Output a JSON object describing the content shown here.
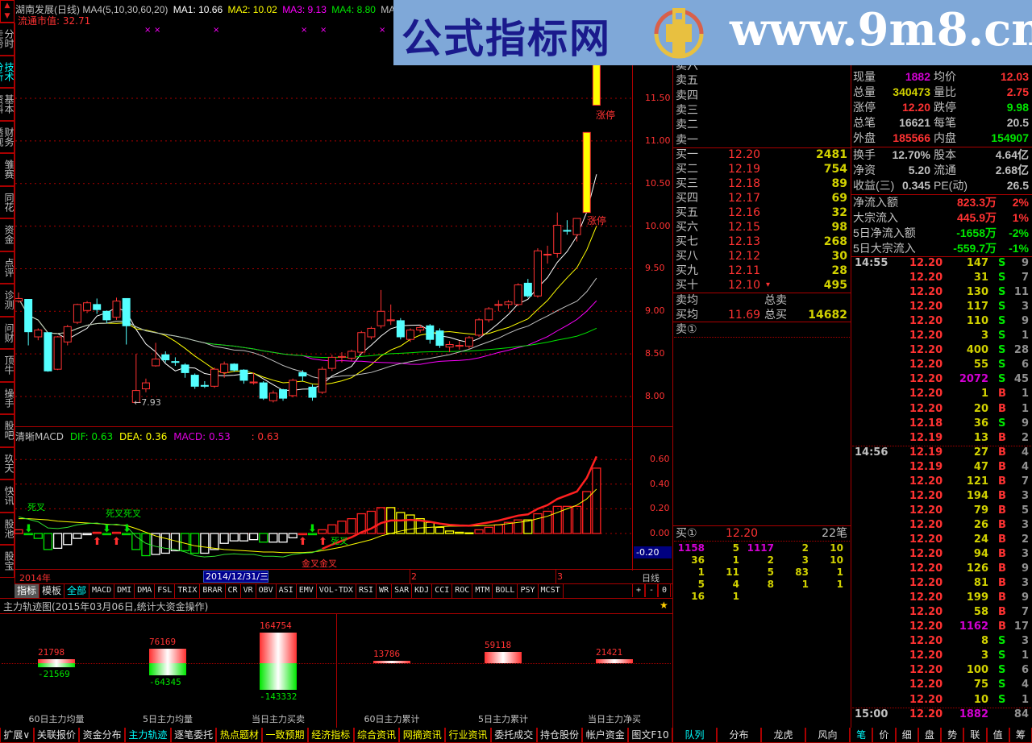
{
  "header": {
    "title": "湖南发展(日线) MA4(5,10,30,60,20)",
    "ma1": "MA1: 10.66",
    "ma2": "MA2: 10.02",
    "ma3": "MA3: 9.13",
    "ma4": "MA4: 8.80",
    "ma5": "MA5",
    "market_cap": "流通市值: 32.71"
  },
  "banner": {
    "site_name": "公式指标网",
    "url": "www.9m8.cn"
  },
  "sidebar": {
    "tabs": [
      "分时走势",
      "技术分析",
      "基本资料",
      "财务透视",
      "雏赛",
      "同花",
      "资金",
      "点评",
      "诊测",
      "问财",
      "顶牛",
      "操手",
      "股吧",
      "玖天",
      "快讯",
      "股池",
      "股宝"
    ],
    "active": 1
  },
  "main_chart": {
    "price_ticks": [
      "8.00",
      "8.50",
      "9.00",
      "9.50",
      "10.00",
      "10.50",
      "11.00",
      "11.50"
    ],
    "low_marker": "←7.93",
    "limit_up_label": "涨停",
    "colors": {
      "up": "#ff3232",
      "down": "#54ffff",
      "limit": "#ffff00",
      "ma1": "#ffffff",
      "ma2": "#ffff00",
      "ma3": "#ff00ff",
      "ma4": "#00e600",
      "ma5": "#c0c0c0"
    }
  },
  "chart_data": [
    {
      "type": "candlestick",
      "title": "湖南发展(日线)",
      "ylim": [
        7.8,
        11.9
      ],
      "yticks": [
        8.0,
        8.5,
        9.0,
        9.5,
        10.0,
        10.5,
        11.0,
        11.5
      ],
      "columns": [
        "open",
        "close",
        "high",
        "low"
      ],
      "candles": [
        [
          9.12,
          9.15,
          9.22,
          9.1
        ],
        [
          9.14,
          8.76,
          9.14,
          8.6
        ],
        [
          8.7,
          8.78,
          8.8,
          8.66
        ],
        [
          8.75,
          8.3,
          8.75,
          8.29
        ],
        [
          8.32,
          8.7,
          8.71,
          8.31
        ],
        [
          8.64,
          8.82,
          8.84,
          8.6
        ],
        [
          8.87,
          9.08,
          9.09,
          8.85
        ],
        [
          9.01,
          9.1,
          9.12,
          8.98
        ],
        [
          9.08,
          9.02,
          9.15,
          8.97
        ],
        [
          9.0,
          8.9,
          9.01,
          8.86
        ],
        [
          8.93,
          9.12,
          9.16,
          8.9
        ],
        [
          9.15,
          8.83,
          9.15,
          8.61
        ],
        [
          7.93,
          8.07,
          8.5,
          7.93
        ],
        [
          8.09,
          8.16,
          8.21,
          8.05
        ],
        [
          8.36,
          8.44,
          8.63,
          8.35
        ],
        [
          8.49,
          8.43,
          8.53,
          8.4
        ],
        [
          8.41,
          8.4,
          8.46,
          8.36
        ],
        [
          8.37,
          8.28,
          8.39,
          8.22
        ],
        [
          8.25,
          8.12,
          8.27,
          8.09
        ],
        [
          8.13,
          8.12,
          8.18,
          8.1
        ],
        [
          8.12,
          8.32,
          8.34,
          8.1
        ],
        [
          8.28,
          8.38,
          8.41,
          8.22
        ],
        [
          8.38,
          8.31,
          8.39,
          8.29
        ],
        [
          8.31,
          8.19,
          8.32,
          8.15
        ],
        [
          8.16,
          8.17,
          8.28,
          8.14
        ],
        [
          8.16,
          7.98,
          8.18,
          7.96
        ],
        [
          7.95,
          8.04,
          8.07,
          7.93
        ],
        [
          8.08,
          7.98,
          8.09,
          7.95
        ],
        [
          8.01,
          8.19,
          8.21,
          7.99
        ],
        [
          8.28,
          8.24,
          8.31,
          8.18
        ],
        [
          8.11,
          7.99,
          8.14,
          7.95
        ],
        [
          8.05,
          8.32,
          8.35,
          8.03
        ],
        [
          8.33,
          8.46,
          8.49,
          8.3
        ],
        [
          8.46,
          8.47,
          8.52,
          8.4
        ],
        [
          8.45,
          8.53,
          8.55,
          8.42
        ],
        [
          8.52,
          8.75,
          8.77,
          8.5
        ],
        [
          8.7,
          8.8,
          8.82,
          8.67
        ],
        [
          8.83,
          9.0,
          9.25,
          8.8
        ],
        [
          8.89,
          8.9,
          9.08,
          8.84
        ],
        [
          8.89,
          8.7,
          8.92,
          8.67
        ],
        [
          8.67,
          8.78,
          8.8,
          8.64
        ],
        [
          8.78,
          8.81,
          8.84,
          8.75
        ],
        [
          8.83,
          8.67,
          8.85,
          8.62
        ],
        [
          8.77,
          8.6,
          8.8,
          8.57
        ],
        [
          8.58,
          8.61,
          8.65,
          8.52
        ],
        [
          8.59,
          8.6,
          8.65,
          8.55
        ],
        [
          8.59,
          8.69,
          8.71,
          8.56
        ],
        [
          8.72,
          8.9,
          8.92,
          8.7
        ],
        [
          8.9,
          9.03,
          9.05,
          8.87
        ],
        [
          9.07,
          9.08,
          9.13,
          9.0
        ],
        [
          9.08,
          9.11,
          9.13,
          9.03
        ],
        [
          9.08,
          9.31,
          9.33,
          9.06
        ],
        [
          9.33,
          9.18,
          9.38,
          9.16
        ],
        [
          9.18,
          9.71,
          9.74,
          9.16
        ],
        [
          9.66,
          9.67,
          9.77,
          9.56
        ],
        [
          9.68,
          10.01,
          10.16,
          9.63
        ],
        [
          9.95,
          9.94,
          10.07,
          9.9
        ],
        [
          9.9,
          10.09,
          10.09,
          9.82
        ],
        [
          10.16,
          11.1,
          11.1,
          10.16
        ],
        [
          11.42,
          11.9,
          11.9,
          11.42
        ]
      ],
      "limit_up_days": [
        58,
        59
      ],
      "moving_averages": {
        "MA1": 5,
        "MA2": 10,
        "MA3": 30,
        "MA4": 60,
        "MA5": 20
      }
    },
    {
      "type": "bar",
      "title": "清晰MACD",
      "ylim": [
        -0.25,
        0.75
      ],
      "yticks": [
        0.0,
        0.2,
        0.4,
        0.6
      ],
      "series": [
        {
          "name": "MACD",
          "values": [
            0.03,
            -0.01,
            -0.04,
            -0.13,
            -0.12,
            -0.09,
            -0.04,
            -0.01,
            0.01,
            -0.01,
            0.01,
            -0.01,
            -0.13,
            -0.18,
            -0.17,
            -0.16,
            -0.14,
            -0.14,
            -0.16,
            -0.16,
            -0.13,
            -0.08,
            -0.06,
            -0.06,
            -0.05,
            -0.07,
            -0.07,
            -0.07,
            -0.035,
            -0.01,
            -0.01,
            0.03,
            0.07,
            0.1,
            0.12,
            0.16,
            0.18,
            0.21,
            0.21,
            0.17,
            0.15,
            0.12,
            0.09,
            0.05,
            0.02,
            0.01,
            0.005,
            0.03,
            0.05,
            0.07,
            0.09,
            0.11,
            0.11,
            0.16,
            0.18,
            0.22,
            0.22,
            0.22,
            0.34,
            0.53
          ]
        },
        {
          "name": "DIF",
          "values": [
            0.135,
            0.115,
            0.095,
            0.045,
            0.04,
            0.05,
            0.07,
            0.08,
            0.085,
            0.07,
            0.075,
            0.06,
            -0.025,
            -0.08,
            -0.105,
            -0.12,
            -0.13,
            -0.15,
            -0.18,
            -0.19,
            -0.185,
            -0.17,
            -0.165,
            -0.17,
            -0.17,
            -0.185,
            -0.185,
            -0.19,
            -0.17,
            -0.16,
            -0.155,
            -0.125,
            -0.09,
            -0.06,
            -0.03,
            0.01,
            0.04,
            0.085,
            0.105,
            0.105,
            0.11,
            0.105,
            0.095,
            0.08,
            0.07,
            0.065,
            0.063,
            0.077,
            0.09,
            0.105,
            0.125,
            0.145,
            0.155,
            0.2,
            0.23,
            0.28,
            0.31,
            0.34,
            0.45,
            0.625
          ]
        },
        {
          "name": "DEA",
          "values": [
            0.12,
            0.12,
            0.115,
            0.11,
            0.1,
            0.095,
            0.09,
            0.085,
            0.08,
            0.075,
            0.07,
            0.065,
            0.04,
            0.01,
            -0.02,
            -0.04,
            -0.06,
            -0.08,
            -0.1,
            -0.11,
            -0.12,
            -0.13,
            -0.135,
            -0.14,
            -0.145,
            -0.15,
            -0.15,
            -0.155,
            -0.155,
            -0.155,
            -0.15,
            -0.14,
            -0.125,
            -0.11,
            -0.09,
            -0.07,
            -0.05,
            -0.02,
            0.0,
            0.02,
            0.035,
            0.045,
            0.05,
            0.055,
            0.06,
            0.06,
            0.06,
            0.062,
            0.065,
            0.07,
            0.08,
            0.09,
            0.1,
            0.12,
            0.14,
            0.17,
            0.2,
            0.23,
            0.28,
            0.36
          ]
        }
      ],
      "bar_styles": "rgggwwwwrgrgggwwwggwwwwwwgwwwrgrrrrrrryyyyyyyyyrrrrryrrrrrrr",
      "style_colors": {
        "r": "#ff2020",
        "g": "#00e600",
        "w": "#ffffff",
        "y": "#ffff00"
      }
    },
    {
      "type": "bar",
      "title": "主力轨迹图(2015年03月06日,统计大资金操作)",
      "categories": [
        "60日主力均量",
        "5日主力均量",
        "当日主力买卖",
        "60日主力累计",
        "5日主力累计",
        "当日主力净买"
      ],
      "series": [
        {
          "name": "buy",
          "values": [
            21798,
            76169,
            164754,
            13786,
            59118,
            21421
          ]
        },
        {
          "name": "sell",
          "values": [
            -21569,
            -64345,
            -143332,
            null,
            null,
            null
          ]
        }
      ]
    }
  ],
  "macd": {
    "label": "清晰MACD",
    "dif": "DIF: 0.63",
    "dea": "DEA: 0.36",
    "macd": "MACD: 0.53",
    "extra": ": 0.63",
    "ticks": [
      "0.00",
      "0.20",
      "0.40",
      "0.60"
    ],
    "cursor_value": "-0.20",
    "signals": {
      "dead_cross": "死叉",
      "dead_cross_2": "死叉死叉",
      "golden_cross_2": "金叉金叉",
      "dead_cross_3": "死叉"
    }
  },
  "date_axis": {
    "year": "2014年",
    "cursor_date": "2014/12/31/三",
    "m2": "2",
    "m3": "3",
    "period": "日线"
  },
  "indicator_tabs": {
    "items": [
      "指标",
      "模板",
      "全部",
      "MACD",
      "DMI",
      "DMA",
      "FSL",
      "TRIX",
      "BRAR",
      "CR",
      "VR",
      "OBV",
      "ASI",
      "EMV",
      "VOL-TDX",
      "RSI",
      "WR",
      "SAR",
      "KDJ",
      "CCI",
      "ROC",
      "MTM",
      "BOLL",
      "PSY",
      "MCST"
    ],
    "zoom": [
      "+",
      "-",
      "0"
    ]
  },
  "fund_flow": {
    "title": "主力轨迹图(2015年03月06日,统计大资金操作)",
    "items": [
      {
        "label": "60日主力均量",
        "buy": "21798",
        "sell": "-21569"
      },
      {
        "label": "5日主力均量",
        "buy": "76169",
        "sell": "-64345"
      },
      {
        "label": "当日主力买卖",
        "buy": "164754",
        "sell": "-143332"
      },
      {
        "label": "60日主力累计",
        "buy": "13786"
      },
      {
        "label": "5日主力累计",
        "buy": "59118"
      },
      {
        "label": "当日主力净买",
        "buy": "21421"
      }
    ]
  },
  "order_book": {
    "sell": [
      {
        "label": "卖六"
      },
      {
        "label": "卖五"
      },
      {
        "label": "卖四"
      },
      {
        "label": "卖三"
      },
      {
        "label": "卖二"
      },
      {
        "label": "卖一"
      }
    ],
    "buy": [
      {
        "label": "买一",
        "price": "12.20",
        "vol": "2481"
      },
      {
        "label": "买二",
        "price": "12.19",
        "vol": "754"
      },
      {
        "label": "买三",
        "price": "12.18",
        "vol": "89"
      },
      {
        "label": "买四",
        "price": "12.17",
        "vol": "69"
      },
      {
        "label": "买五",
        "price": "12.16",
        "vol": "32"
      },
      {
        "label": "买六",
        "price": "12.15",
        "vol": "98"
      },
      {
        "label": "买七",
        "price": "12.13",
        "vol": "268"
      },
      {
        "label": "买八",
        "price": "12.12",
        "vol": "30"
      },
      {
        "label": "买九",
        "price": "12.11",
        "vol": "28"
      },
      {
        "label": "买十",
        "price": "12.10",
        "vol": "495",
        "mark": "▾"
      }
    ],
    "sell_avg_label": "卖均",
    "total_sell_label": "总卖",
    "buy_avg_label": "买均",
    "buy_avg": "11.69",
    "total_buy_label": "总买",
    "total_buy": "14682",
    "sell1_queue_label": "卖①",
    "buy1_queue_label": "买①",
    "buy1_price": "12.20",
    "buy1_count": "22笔",
    "queue": [
      [
        "1158",
        "5",
        "1117",
        "2",
        "10"
      ],
      [
        "36",
        "1",
        "2",
        "3",
        "10"
      ],
      [
        "1",
        "11",
        "5",
        "83",
        "1"
      ],
      [
        "5",
        "4",
        "8",
        "1",
        "1"
      ],
      [
        "16",
        "1",
        "",
        "",
        ""
      ]
    ]
  },
  "stats": {
    "quote": [
      [
        "现量",
        "1882",
        "mag",
        "均价",
        "12.03",
        "red"
      ],
      [
        "总量",
        "340473",
        "yel",
        "量比",
        "2.75",
        "red"
      ],
      [
        "涨停",
        "12.20",
        "red",
        "跌停",
        "9.98",
        "grn"
      ],
      [
        "总笔",
        "16621",
        "gry",
        "每笔",
        "20.5",
        "gry"
      ],
      [
        "外盘",
        "185566",
        "red",
        "内盘",
        "154907",
        "grn"
      ]
    ],
    "fundamental": [
      [
        "换手",
        "12.70%",
        "股本",
        "4.64亿"
      ],
      [
        "净资",
        "5.20",
        "流通",
        "2.68亿"
      ],
      [
        "收益(三)",
        "0.345",
        "PE(动)",
        "26.5"
      ]
    ],
    "flow": [
      [
        "净流入额",
        "823.3万",
        "2%",
        "red"
      ],
      [
        "大宗流入",
        "445.9万",
        "1%",
        "red"
      ],
      [
        "5日净流入额",
        "-1658万",
        "-2%",
        "grn"
      ],
      [
        "5日大宗流入",
        "-559.7万",
        "-1%",
        "grn"
      ]
    ]
  },
  "ticks": [
    [
      "14:55",
      "12.20",
      "147",
      "S",
      "9"
    ],
    [
      "",
      "12.20",
      "31",
      "S",
      "7"
    ],
    [
      "",
      "12.20",
      "130",
      "S",
      "11"
    ],
    [
      "",
      "12.20",
      "117",
      "S",
      "3"
    ],
    [
      "",
      "12.20",
      "110",
      "S",
      "9"
    ],
    [
      "",
      "12.20",
      "3",
      "S",
      "1"
    ],
    [
      "",
      "12.20",
      "400",
      "S",
      "28"
    ],
    [
      "",
      "12.20",
      "55",
      "S",
      "6"
    ],
    [
      "",
      "12.20",
      "2072",
      "S",
      "45"
    ],
    [
      "",
      "12.20",
      "1",
      "B",
      "1"
    ],
    [
      "",
      "12.20",
      "20",
      "B",
      "1"
    ],
    [
      "",
      "12.18",
      "36",
      "S",
      "9"
    ],
    [
      "",
      "12.19",
      "13",
      "B",
      "2"
    ],
    [
      "14:56",
      "12.19",
      "27",
      "B",
      "4"
    ],
    [
      "",
      "12.19",
      "47",
      "B",
      "4"
    ],
    [
      "",
      "12.20",
      "121",
      "B",
      "7"
    ],
    [
      "",
      "12.20",
      "194",
      "B",
      "3"
    ],
    [
      "",
      "12.20",
      "79",
      "B",
      "5"
    ],
    [
      "",
      "12.20",
      "26",
      "B",
      "3"
    ],
    [
      "",
      "12.20",
      "24",
      "B",
      "2"
    ],
    [
      "",
      "12.20",
      "94",
      "B",
      "3"
    ],
    [
      "",
      "12.20",
      "126",
      "B",
      "9"
    ],
    [
      "",
      "12.20",
      "81",
      "B",
      "3"
    ],
    [
      "",
      "12.20",
      "199",
      "B",
      "9"
    ],
    [
      "",
      "12.20",
      "58",
      "B",
      "7"
    ],
    [
      "",
      "12.20",
      "1162",
      "B",
      "17"
    ],
    [
      "",
      "12.20",
      "8",
      "S",
      "3"
    ],
    [
      "",
      "12.20",
      "3",
      "S",
      "1"
    ],
    [
      "",
      "12.20",
      "100",
      "S",
      "6"
    ],
    [
      "",
      "12.20",
      "75",
      "S",
      "4"
    ],
    [
      "",
      "12.20",
      "10",
      "S",
      "1"
    ],
    [
      "15:00",
      "12.20",
      "1882",
      "",
      "84"
    ]
  ],
  "bottom_tabs": {
    "left": [
      [
        "扩展∨",
        ""
      ],
      [
        "关联报价",
        ""
      ],
      [
        "资金分布",
        ""
      ],
      [
        "主力轨迹",
        "c"
      ],
      [
        "逐笔委托",
        ""
      ],
      [
        "热点题材",
        "y"
      ],
      [
        "一致预期",
        "y"
      ],
      [
        "经济指标",
        "y"
      ],
      [
        "综合资讯",
        "y"
      ],
      [
        "网摘资讯",
        "y"
      ],
      [
        "行业资讯",
        "y"
      ],
      [
        "委托成交",
        ""
      ],
      [
        "持仓股份",
        ""
      ],
      [
        "帐户资金",
        ""
      ],
      [
        "图文F10",
        ""
      ]
    ],
    "mid": [
      [
        "队列",
        "c"
      ],
      [
        "分布",
        ""
      ],
      [
        "龙虎",
        ""
      ],
      [
        "风向",
        ""
      ]
    ],
    "right": [
      [
        "笔",
        "c"
      ],
      [
        "价",
        ""
      ],
      [
        "细",
        ""
      ],
      [
        "盘",
        ""
      ],
      [
        "势",
        ""
      ],
      [
        "联",
        ""
      ],
      [
        "值",
        ""
      ],
      [
        "筹",
        ""
      ]
    ]
  }
}
